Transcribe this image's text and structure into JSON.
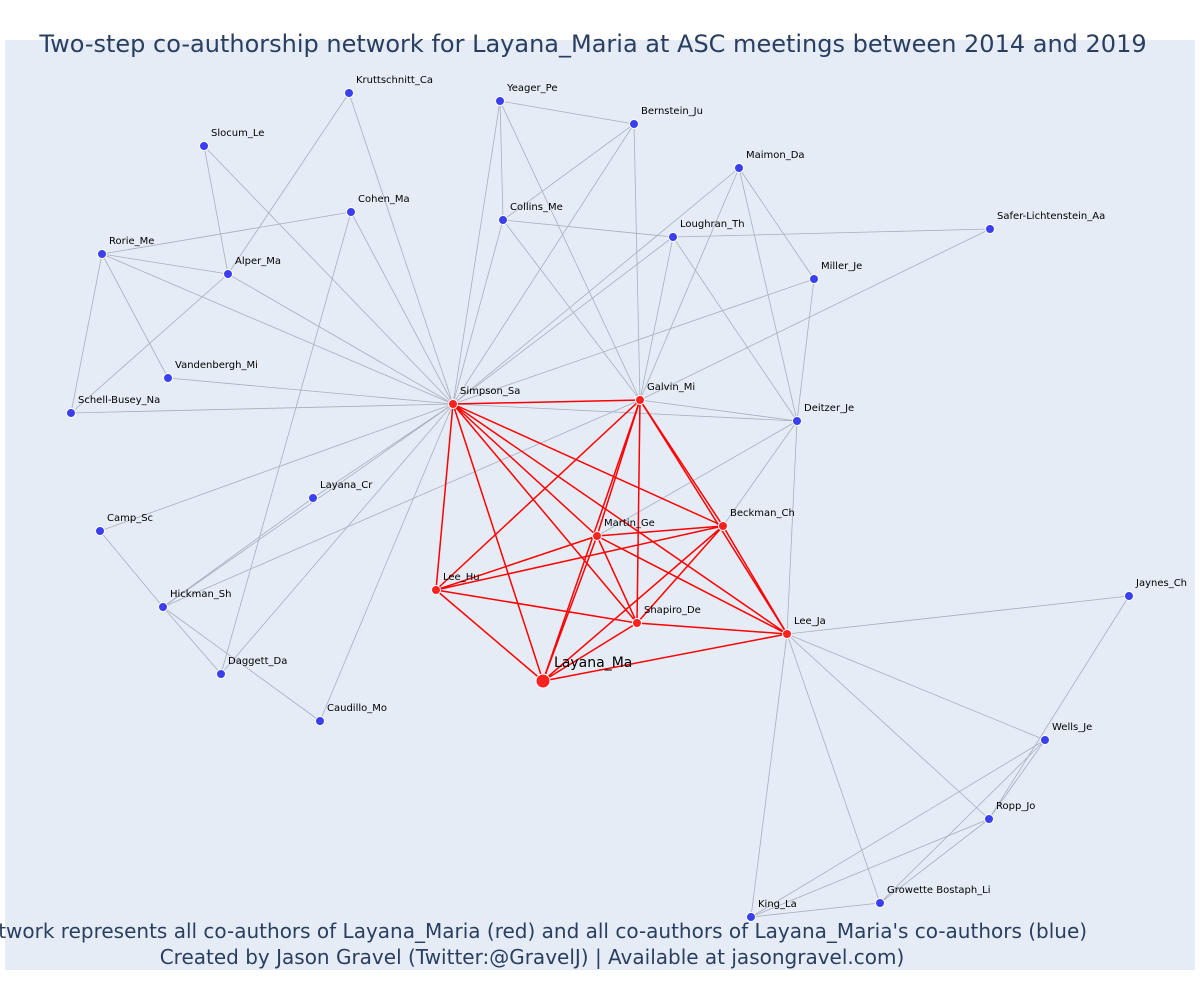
{
  "title": "Two-step co-authorship network for Layana_Maria at ASC meetings between 2014 and 2019",
  "caption_line1": "Network represents all co-authors of Layana_Maria (red) and all co-authors of Layana_Maria's co-authors (blue)",
  "caption_line2": "Created by Jason Gravel (Twitter:@GravelJ) | Available at jasongravel.com)",
  "colors": {
    "background": "#e5ecf6",
    "coauthor": "#ff2020",
    "second_step": "#3a3ff0",
    "edge_red": "#ff0000",
    "edge_grey": "#a9aebf",
    "title_text": "#2a3f5f"
  },
  "ego": "Layana_Ma",
  "nodes": [
    {
      "id": "Layana_Ma",
      "group": "ego"
    },
    {
      "id": "Simpson_Sa",
      "group": "coauthor"
    },
    {
      "id": "Galvin_Mi",
      "group": "coauthor"
    },
    {
      "id": "Beckman_Ch",
      "group": "coauthor"
    },
    {
      "id": "Martin_Ge",
      "group": "coauthor"
    },
    {
      "id": "Lee_Hu",
      "group": "coauthor"
    },
    {
      "id": "Shapiro_De",
      "group": "coauthor"
    },
    {
      "id": "Lee_Ja",
      "group": "coauthor"
    },
    {
      "id": "Kruttschnitt_Ca",
      "group": "second"
    },
    {
      "id": "Yeager_Pe",
      "group": "second"
    },
    {
      "id": "Bernstein_Ju",
      "group": "second"
    },
    {
      "id": "Slocum_Le",
      "group": "second"
    },
    {
      "id": "Maimon_Da",
      "group": "second"
    },
    {
      "id": "Cohen_Ma",
      "group": "second"
    },
    {
      "id": "Collins_Me",
      "group": "second"
    },
    {
      "id": "Safer-Lichtenstein_Aa",
      "group": "second"
    },
    {
      "id": "Loughran_Th",
      "group": "second"
    },
    {
      "id": "Rorie_Me",
      "group": "second"
    },
    {
      "id": "Alper_Ma",
      "group": "second"
    },
    {
      "id": "Miller_Je",
      "group": "second"
    },
    {
      "id": "Vandenbergh_Mi",
      "group": "second"
    },
    {
      "id": "Schell-Busey_Na",
      "group": "second"
    },
    {
      "id": "Deitzer_Je",
      "group": "second"
    },
    {
      "id": "Layana_Cr",
      "group": "second"
    },
    {
      "id": "Camp_Sc",
      "group": "second"
    },
    {
      "id": "Hickman_Sh",
      "group": "second"
    },
    {
      "id": "Daggett_Da",
      "group": "second"
    },
    {
      "id": "Caudillo_Mo",
      "group": "second"
    },
    {
      "id": "Jaynes_Ch",
      "group": "second"
    },
    {
      "id": "Wells_Je",
      "group": "second"
    },
    {
      "id": "Ropp_Jo",
      "group": "second"
    },
    {
      "id": "Growette Bostaph_Li",
      "group": "second"
    },
    {
      "id": "King_La",
      "group": "second"
    }
  ],
  "edges": [
    [
      "Layana_Ma",
      "Simpson_Sa"
    ],
    [
      "Layana_Ma",
      "Galvin_Mi"
    ],
    [
      "Layana_Ma",
      "Beckman_Ch"
    ],
    [
      "Layana_Ma",
      "Martin_Ge"
    ],
    [
      "Layana_Ma",
      "Lee_Hu"
    ],
    [
      "Layana_Ma",
      "Shapiro_De"
    ],
    [
      "Layana_Ma",
      "Lee_Ja"
    ],
    [
      "Simpson_Sa",
      "Galvin_Mi"
    ],
    [
      "Simpson_Sa",
      "Beckman_Ch"
    ],
    [
      "Simpson_Sa",
      "Martin_Ge"
    ],
    [
      "Simpson_Sa",
      "Lee_Hu"
    ],
    [
      "Simpson_Sa",
      "Shapiro_De"
    ],
    [
      "Simpson_Sa",
      "Lee_Ja"
    ],
    [
      "Galvin_Mi",
      "Beckman_Ch"
    ],
    [
      "Galvin_Mi",
      "Martin_Ge"
    ],
    [
      "Galvin_Mi",
      "Lee_Hu"
    ],
    [
      "Galvin_Mi",
      "Shapiro_De"
    ],
    [
      "Galvin_Mi",
      "Lee_Ja"
    ],
    [
      "Martin_Ge",
      "Beckman_Ch"
    ],
    [
      "Martin_Ge",
      "Lee_Hu"
    ],
    [
      "Martin_Ge",
      "Shapiro_De"
    ],
    [
      "Martin_Ge",
      "Lee_Ja"
    ],
    [
      "Beckman_Ch",
      "Lee_Hu"
    ],
    [
      "Beckman_Ch",
      "Shapiro_De"
    ],
    [
      "Beckman_Ch",
      "Lee_Ja"
    ],
    [
      "Lee_Hu",
      "Shapiro_De"
    ],
    [
      "Shapiro_De",
      "Lee_Ja"
    ],
    [
      "Simpson_Sa",
      "Kruttschnitt_Ca"
    ],
    [
      "Simpson_Sa",
      "Slocum_Le"
    ],
    [
      "Simpson_Sa",
      "Cohen_Ma"
    ],
    [
      "Simpson_Sa",
      "Rorie_Me"
    ],
    [
      "Simpson_Sa",
      "Alper_Ma"
    ],
    [
      "Simpson_Sa",
      "Vandenbergh_Mi"
    ],
    [
      "Simpson_Sa",
      "Schell-Busey_Na"
    ],
    [
      "Simpson_Sa",
      "Yeager_Pe"
    ],
    [
      "Simpson_Sa",
      "Collins_Me"
    ],
    [
      "Simpson_Sa",
      "Bernstein_Ju"
    ],
    [
      "Simpson_Sa",
      "Maimon_Da"
    ],
    [
      "Simpson_Sa",
      "Loughran_Th"
    ],
    [
      "Simpson_Sa",
      "Miller_Je"
    ],
    [
      "Simpson_Sa",
      "Deitzer_Je"
    ],
    [
      "Simpson_Sa",
      "Camp_Sc"
    ],
    [
      "Simpson_Sa",
      "Hickman_Sh"
    ],
    [
      "Simpson_Sa",
      "Daggett_Da"
    ],
    [
      "Simpson_Sa",
      "Caudillo_Mo"
    ],
    [
      "Simpson_Sa",
      "Layana_Cr"
    ],
    [
      "Kruttschnitt_Ca",
      "Alper_Ma"
    ],
    [
      "Slocum_Le",
      "Alper_Ma"
    ],
    [
      "Rorie_Me",
      "Alper_Ma"
    ],
    [
      "Rorie_Me",
      "Cohen_Ma"
    ],
    [
      "Rorie_Me",
      "Vandenbergh_Mi"
    ],
    [
      "Rorie_Me",
      "Schell-Busey_Na"
    ],
    [
      "Alper_Ma",
      "Schell-Busey_Na"
    ],
    [
      "Cohen_Ma",
      "Daggett_Da"
    ],
    [
      "Yeager_Pe",
      "Bernstein_Ju"
    ],
    [
      "Yeager_Pe",
      "Collins_Me"
    ],
    [
      "Yeager_Pe",
      "Galvin_Mi"
    ],
    [
      "Bernstein_Ju",
      "Collins_Me"
    ],
    [
      "Bernstein_Ju",
      "Galvin_Mi"
    ],
    [
      "Collins_Me",
      "Loughran_Th"
    ],
    [
      "Collins_Me",
      "Galvin_Mi"
    ],
    [
      "Loughran_Th",
      "Safer-Lichtenstein_Aa"
    ],
    [
      "Loughran_Th",
      "Galvin_Mi"
    ],
    [
      "Loughran_Th",
      "Deitzer_Je"
    ],
    [
      "Maimon_Da",
      "Miller_Je"
    ],
    [
      "Maimon_Da",
      "Deitzer_Je"
    ],
    [
      "Maimon_Da",
      "Galvin_Mi"
    ],
    [
      "Miller_Je",
      "Deitzer_Je"
    ],
    [
      "Safer-Lichtenstein_Aa",
      "Galvin_Mi"
    ],
    [
      "Galvin_Mi",
      "Deitzer_Je"
    ],
    [
      "Galvin_Mi",
      "Hickman_Sh"
    ],
    [
      "Deitzer_Je",
      "Beckman_Ch"
    ],
    [
      "Deitzer_Je",
      "Martin_Ge"
    ],
    [
      "Deitzer_Je",
      "Lee_Ja"
    ],
    [
      "Layana_Cr",
      "Hickman_Sh"
    ],
    [
      "Camp_Sc",
      "Hickman_Sh"
    ],
    [
      "Hickman_Sh",
      "Daggett_Da"
    ],
    [
      "Hickman_Sh",
      "Caudillo_Mo"
    ],
    [
      "Lee_Ja",
      "Jaynes_Ch"
    ],
    [
      "Lee_Ja",
      "Wells_Je"
    ],
    [
      "Lee_Ja",
      "Ropp_Jo"
    ],
    [
      "Lee_Ja",
      "Growette Bostaph_Li"
    ],
    [
      "Lee_Ja",
      "King_La"
    ],
    [
      "Jaynes_Ch",
      "Ropp_Jo"
    ],
    [
      "Wells_Je",
      "Ropp_Jo"
    ],
    [
      "Wells_Je",
      "King_La"
    ],
    [
      "Wells_Je",
      "Growette Bostaph_Li"
    ],
    [
      "Ropp_Jo",
      "King_La"
    ],
    [
      "Ropp_Jo",
      "Growette Bostaph_Li"
    ],
    [
      "King_La",
      "Growette Bostaph_Li"
    ]
  ]
}
